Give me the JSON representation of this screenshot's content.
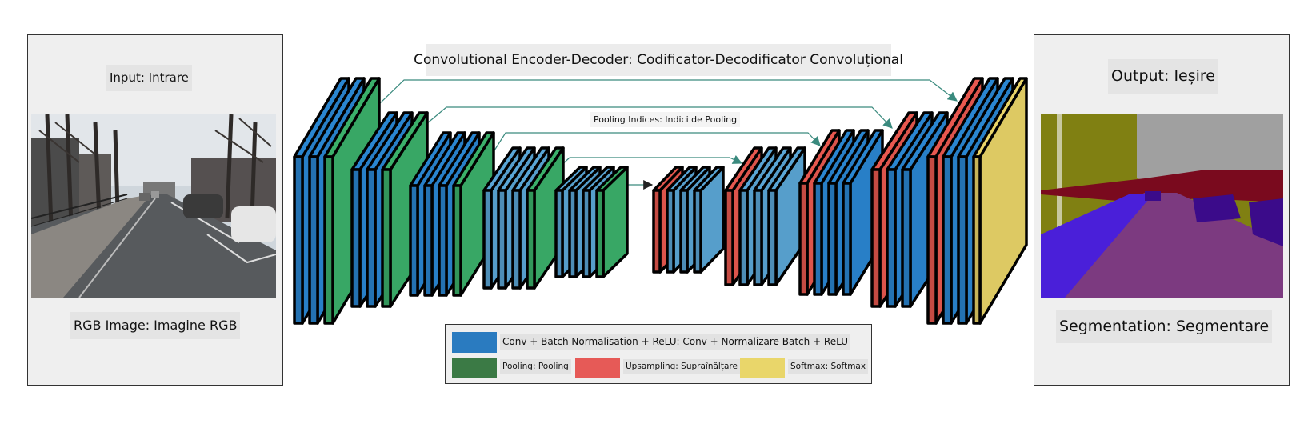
{
  "title": "Convolutional Encoder-Decoder: Codificator-Decodificator Convoluțional",
  "pooling_indices_label": "Pooling Indices: Indici de Pooling",
  "input_panel": {
    "top_label": "Input: Intrare",
    "bottom_label": "RGB Image: Imagine RGB"
  },
  "output_panel": {
    "top_label": "Output: Ieșire",
    "bottom_label": "Segmentation: Segmentare"
  },
  "legend": {
    "conv": {
      "label": "Conv + Batch Normalisation + ReLU: Conv + Normalizare Batch + ReLU",
      "color": "#2a7bc0"
    },
    "pooling": {
      "label": "Pooling: Pooling",
      "color": "#3b7a45"
    },
    "upsampling": {
      "label": "Upsampling: Supraînălțare",
      "color": "#e65a57"
    },
    "softmax": {
      "label": "Softmax: Softmax",
      "color": "#e9d66a"
    }
  },
  "colors": {
    "conv": "#2a86d1",
    "conv_light": "#5aa6d6",
    "pool": "#3bb06a",
    "upsample": "#e8584f",
    "softmax": "#e9d468",
    "outline": "#000000",
    "skip_arrow": "#3a8a7e"
  }
}
